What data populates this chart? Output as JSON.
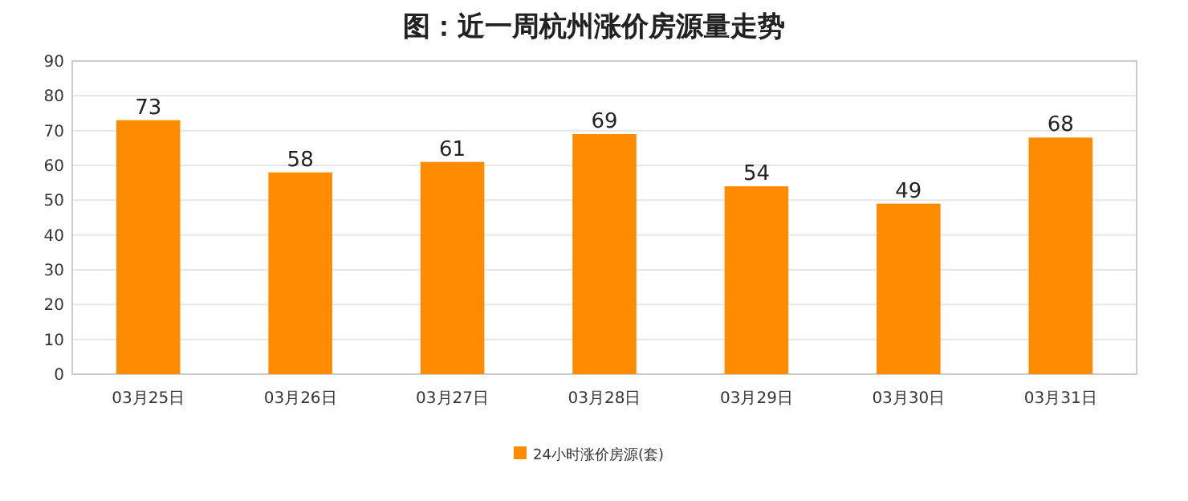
{
  "chart_data": {
    "type": "bar",
    "title": "图：近一周杭州涨价房源量走势",
    "categories": [
      "03月25日",
      "03月26日",
      "03月27日",
      "03月28日",
      "03月29日",
      "03月30日",
      "03月31日"
    ],
    "series": [
      {
        "name": "24小时涨价房源(套)",
        "color": "#ff8c00",
        "values": [
          73,
          58,
          61,
          69,
          54,
          49,
          68
        ]
      }
    ],
    "ylim": [
      0,
      90
    ],
    "yticks": [
      0,
      10,
      20,
      30,
      40,
      50,
      60,
      70,
      80,
      90
    ],
    "grid": "y",
    "legend": "bottom",
    "data_labels": true
  }
}
